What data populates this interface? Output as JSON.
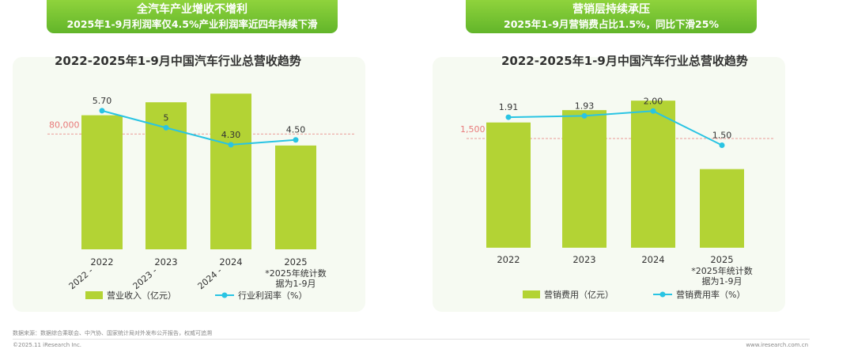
{
  "banners": {
    "left": {
      "line1": "全汽车产业增收不增利",
      "line2": "2025年1-9月利润率仅4.5%产业利润率近四年持续下滑"
    },
    "right": {
      "line1": "营销层持续承压",
      "line2": "2025年1-9月营销费占比1.5%，同比下滑25%"
    }
  },
  "footer": {
    "source": "数据来源：数据综合乘联会、中汽协、国家统计局对外发布公开报告，权威可追溯",
    "copyright": "©2025.11 iResearch Inc.",
    "website": "www.iresearch.com.cn"
  },
  "chart_data": [
    {
      "type": "bar",
      "title": "2022-2025年1-9月中国汽车行业总营收趋势",
      "categories": [
        "2022",
        "2023",
        "2024",
        "2025"
      ],
      "category_notes": [
        "",
        "",
        "",
        "*2025年统计数据为1-9月"
      ],
      "rotated_tick_labels": [
        "2022 - ",
        "2023 - ",
        "2024 - "
      ],
      "series": [
        {
          "name": "营业收入（亿元）",
          "type": "bar",
          "values": [
            93000,
            102000,
            108000,
            72000
          ],
          "color": "#b3d334"
        },
        {
          "name": "行业利润率（%）",
          "type": "line",
          "values": [
            5.7,
            5.0,
            4.3,
            4.5
          ],
          "labels": [
            "5.70",
            "5",
            "4.30",
            "4.50"
          ],
          "color": "#29c4e3"
        }
      ],
      "reference_line": {
        "value": 80000,
        "label": "80,000",
        "color": "#e87a7a"
      },
      "ylim": [
        0,
        140000
      ],
      "line_ylim": [
        0,
        8.3
      ],
      "legend": "bottom"
    },
    {
      "type": "bar",
      "title": "2022-2025年1-9月中国汽车行业总营收趋势",
      "categories": [
        "2022",
        "2023",
        "2024",
        "2025"
      ],
      "category_notes": [
        "",
        "",
        "",
        "*2025年统计数据为1-9月"
      ],
      "series": [
        {
          "name": "营销费用（亿元）",
          "type": "bar",
          "values": [
            1720,
            1890,
            2020,
            1080
          ],
          "color": "#b3d334"
        },
        {
          "name": "营销费用率（%）",
          "type": "line",
          "values": [
            1.91,
            1.93,
            2.0,
            1.5
          ],
          "labels": [
            "1.91",
            "1.93",
            "2.00",
            "1.50"
          ],
          "color": "#29c4e3"
        }
      ],
      "reference_line": {
        "value": 1500,
        "label": "1,500",
        "color": "#e87a7a"
      },
      "ylim": [
        0,
        2750
      ],
      "line_ylim": [
        0,
        2.93
      ],
      "legend": "bottom"
    }
  ]
}
